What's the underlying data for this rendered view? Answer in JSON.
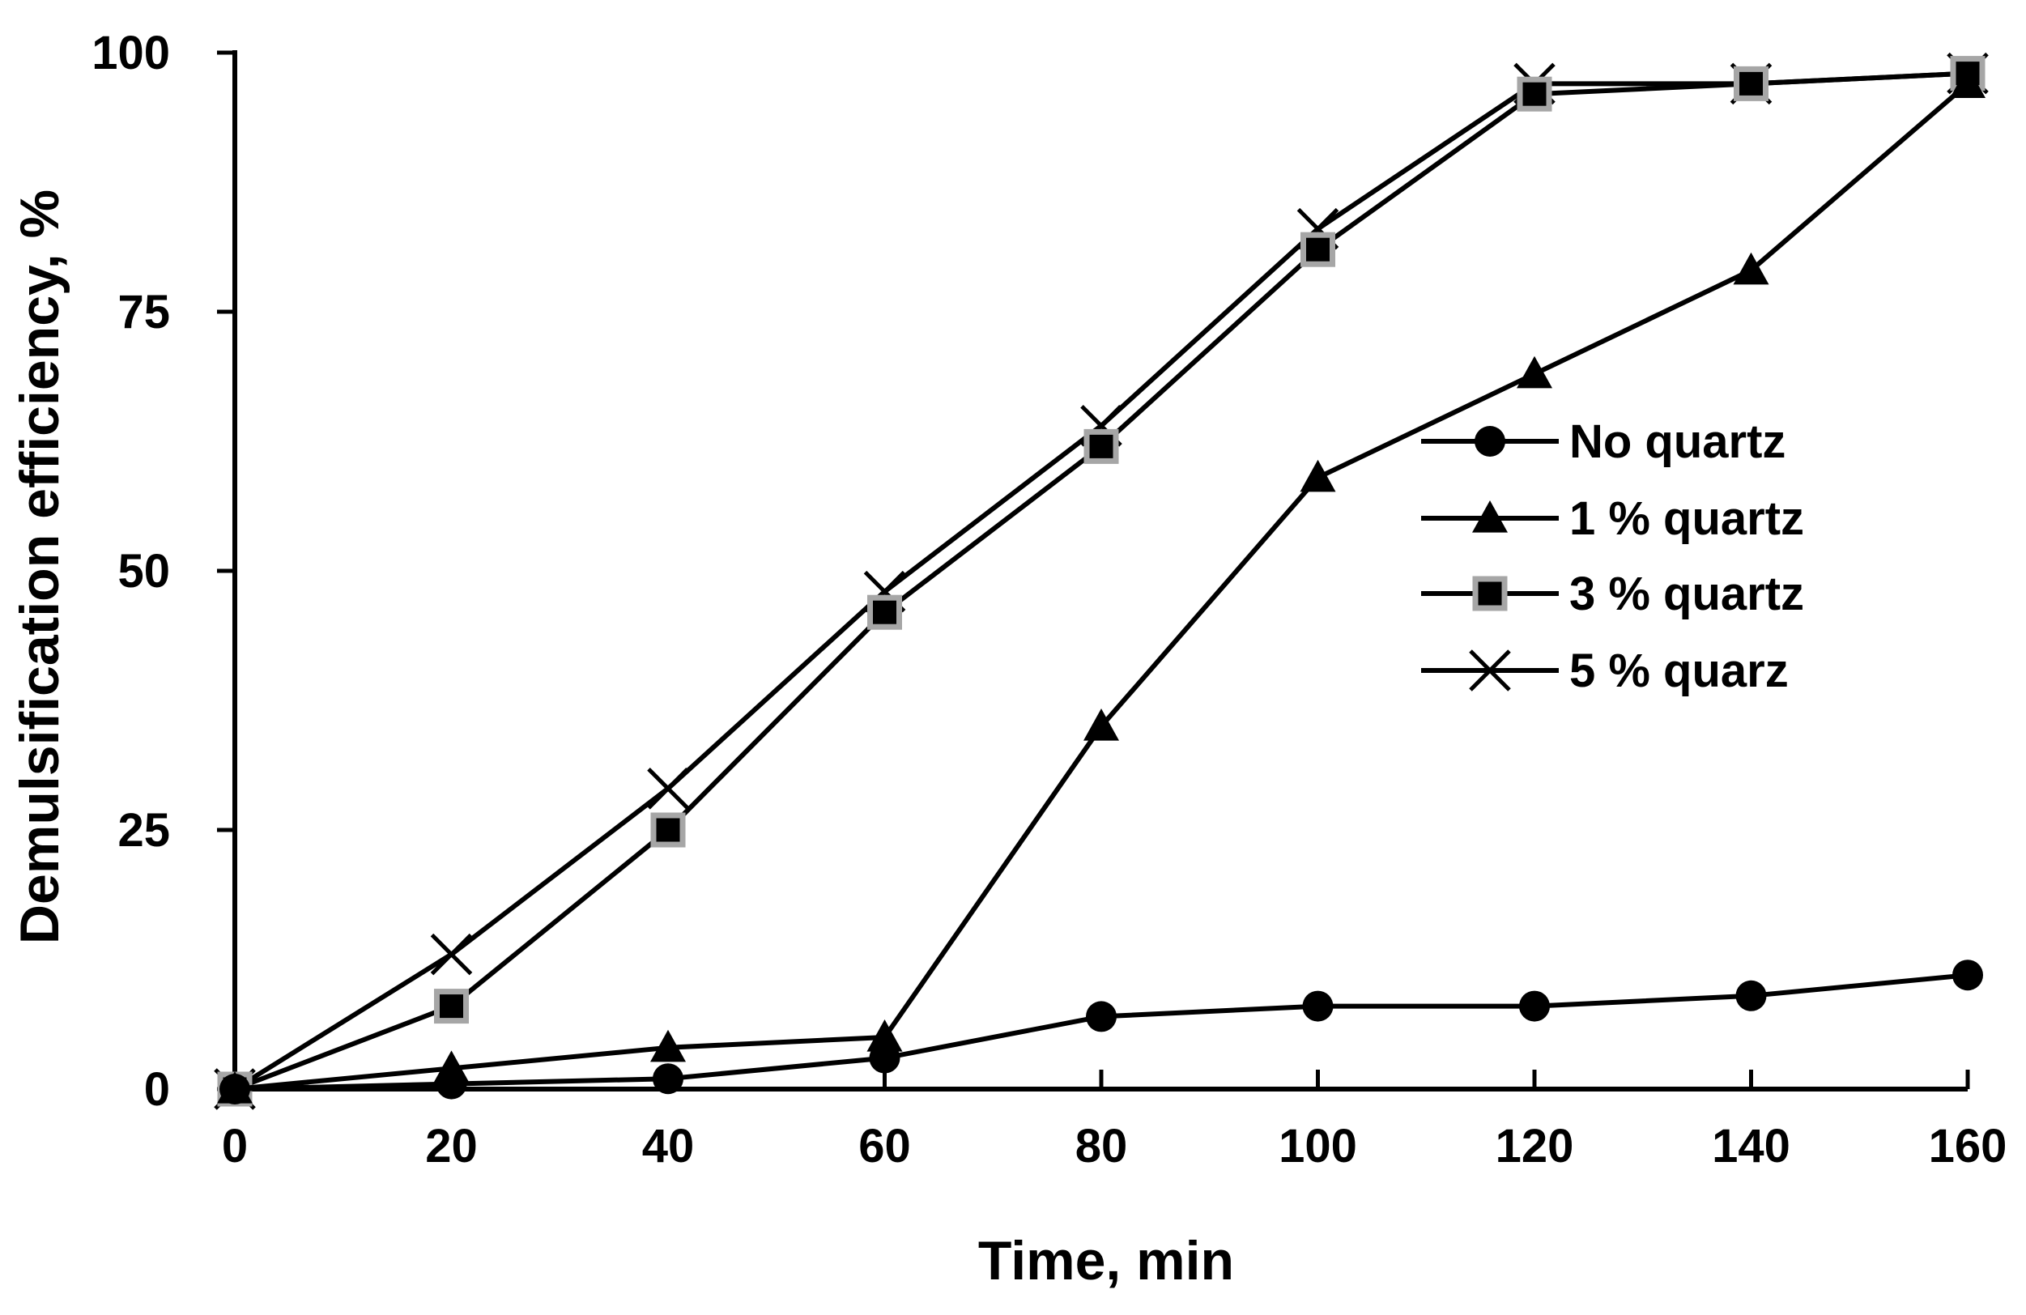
{
  "chart_data": {
    "type": "line",
    "title": "",
    "xlabel": "Time, min",
    "ylabel": "Demulsification efficiency, %",
    "x": [
      0,
      20,
      40,
      60,
      80,
      100,
      120,
      140,
      160
    ],
    "xlim": [
      0,
      160
    ],
    "ylim": [
      0,
      100
    ],
    "xticks": [
      "0",
      "20",
      "40",
      "60",
      "80",
      "100",
      "120",
      "140",
      "160"
    ],
    "yticks": [
      "0",
      "25",
      "50",
      "75",
      "100"
    ],
    "grid": false,
    "legend_position": "right",
    "series": [
      {
        "name": "No quartz",
        "marker": "circle",
        "values": [
          0,
          0.5,
          1,
          3,
          7,
          8,
          8,
          9,
          11
        ]
      },
      {
        "name": "1 % quartz",
        "marker": "triangle",
        "values": [
          0,
          2,
          4,
          5,
          35,
          59,
          69,
          79,
          97
        ]
      },
      {
        "name": "3 % quartz",
        "marker": "square",
        "values": [
          0,
          8,
          25,
          46,
          62,
          81,
          96,
          97,
          98
        ]
      },
      {
        "name": "5 % quarz",
        "marker": "x",
        "values": [
          0,
          13,
          29,
          48,
          64,
          83,
          97,
          97,
          98
        ]
      }
    ],
    "colors": {
      "line": "#000000",
      "square_fill": "#000000",
      "square_edge": "#a6a6a6",
      "marker_fill": "#000000"
    }
  }
}
